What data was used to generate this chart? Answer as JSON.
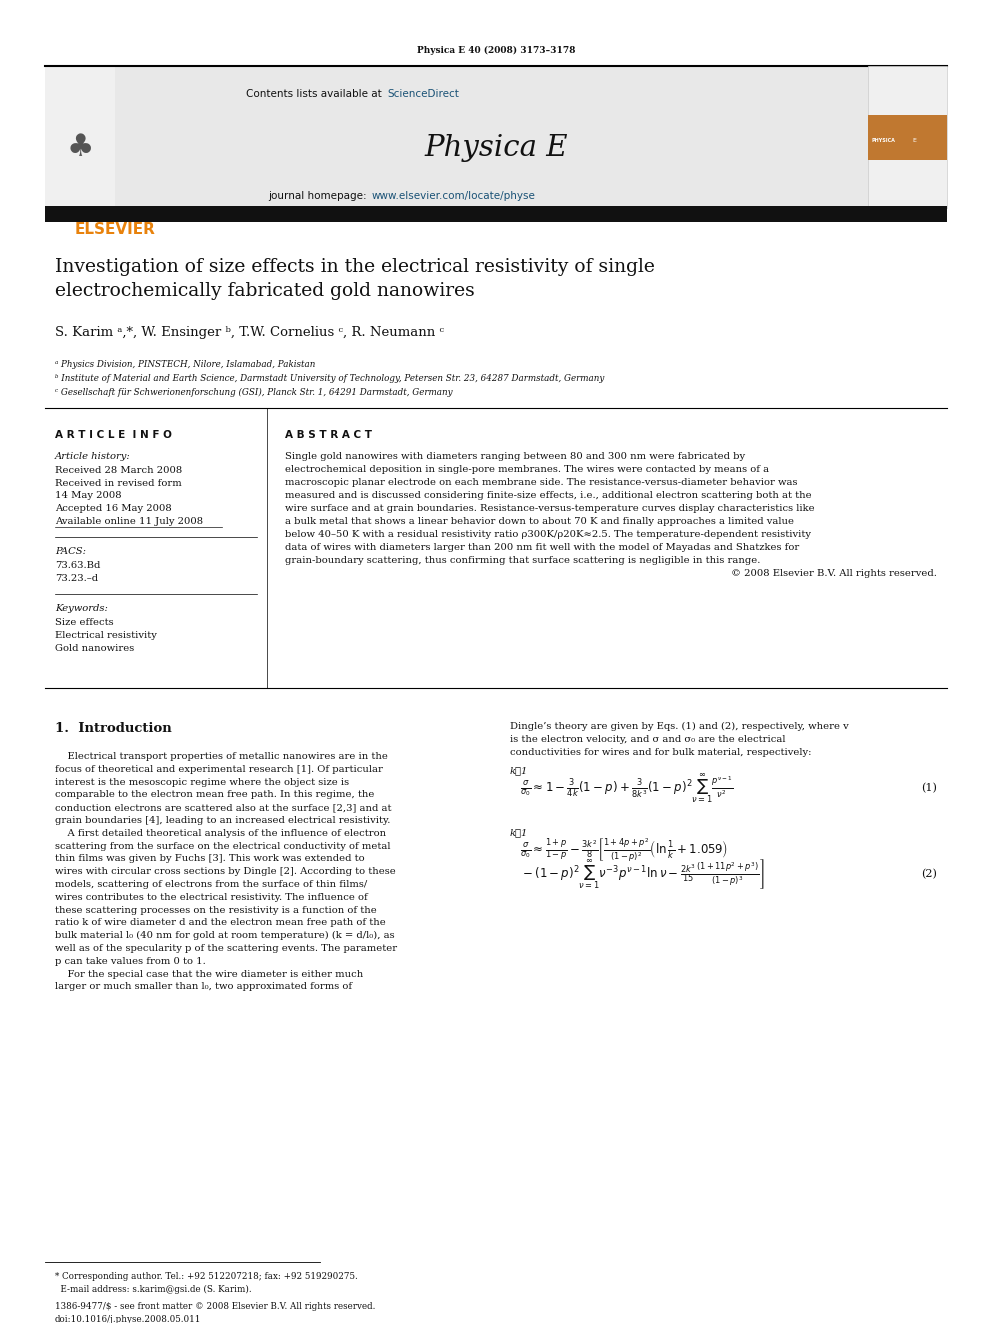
{
  "page_width": 9.92,
  "page_height": 13.23,
  "bg_color": "#ffffff",
  "journal_ref": "Physica E 40 (2008) 3173–3178",
  "header_bg": "#e8e8e8",
  "sciencedirect_color": "#1a5276",
  "journal_name": "Physica E",
  "journal_homepage_label": "journal homepage:",
  "journal_url": "www.elsevier.com/locate/physe",
  "elsevier_color": "#e8820c",
  "elsevier_text": "ELSEVIER",
  "dark_bar_color": "#111111",
  "title_line1": "Investigation of size effects in the electrical resistivity of single",
  "title_line2": "electrochemically fabricated gold nanowires",
  "authors_full": "S. Karim ᵃ,*, W. Ensinger ᵇ, T.W. Cornelius ᶜ, R. Neumann ᶜ",
  "affil_a": "ᵃ Physics Division, PINSTECH, Nilore, Islamabad, Pakistan",
  "affil_b": "ᵇ Institute of Material and Earth Science, Darmstadt University of Technology, Petersen Str. 23, 64287 Darmstadt, Germany",
  "affil_c": "ᶜ Gesellschaft für Schwerionenforschung (GSI), Planck Str. 1, 64291 Darmstadt, Germany",
  "article_info_header": "A R T I C L E  I N F O",
  "abstract_header": "A B S T R A C T",
  "article_history_label": "Article history:",
  "received": "Received 28 March 2008",
  "received_revised": "Received in revised form",
  "received_revised2": "14 May 2008",
  "accepted": "Accepted 16 May 2008",
  "available": "Available online 11 July 2008",
  "pacs_label": "PACS:",
  "pacs1": "73.63.Bd",
  "pacs2": "73.23.–d",
  "keywords_label": "Keywords:",
  "kw1": "Size effects",
  "kw2": "Electrical resistivity",
  "kw3": "Gold nanowires",
  "abstract_lines": [
    "Single gold nanowires with diameters ranging between 80 and 300 nm were fabricated by",
    "electrochemical deposition in single-pore membranes. The wires were contacted by means of a",
    "macroscopic planar electrode on each membrane side. The resistance-versus-diameter behavior was",
    "measured and is discussed considering finite-size effects, i.e., additional electron scattering both at the",
    "wire surface and at grain boundaries. Resistance-versus-temperature curves display characteristics like",
    "a bulk metal that shows a linear behavior down to about 70 K and finally approaches a limited value",
    "below 40–50 K with a residual resistivity ratio ρ300K/ρ20K≈2.5. The temperature-dependent resistivity",
    "data of wires with diameters larger than 200 nm fit well with the model of Mayadas and Shatzkes for",
    "grain-boundary scattering, thus confirming that surface scattering is negligible in this range."
  ],
  "abstract_copy": "© 2008 Elsevier B.V. All rights reserved.",
  "section1_title": "1.  Introduction",
  "intro_col1": [
    "    Electrical transport properties of metallic nanowires are in the",
    "focus of theoretical and experimental research [1]. Of particular",
    "interest is the mesoscopic regime where the object size is",
    "comparable to the electron mean free path. In this regime, the",
    "conduction electrons are scattered also at the surface [2,3] and at",
    "grain boundaries [4], leading to an increased electrical resistivity.",
    "    A first detailed theoretical analysis of the influence of electron",
    "scattering from the surface on the electrical conductivity of metal",
    "thin films was given by Fuchs [3]. This work was extended to",
    "wires with circular cross sections by Dingle [2]. According to these",
    "models, scattering of electrons from the surface of thin films/",
    "wires contributes to the electrical resistivity. The influence of",
    "these scattering processes on the resistivity is a function of the",
    "ratio k of wire diameter d and the electron mean free path of the",
    "bulk material l₀ (40 nm for gold at room temperature) (k = d/l₀), as",
    "well as of the specularity p of the scattering events. The parameter",
    "p can take values from 0 to 1.",
    "    For the special case that the wire diameter is either much",
    "larger or much smaller than l₀, two approximated forms of"
  ],
  "intro_col2": [
    "Dingle’s theory are given by Eqs. (1) and (2), respectively, where v",
    "is the electron velocity, and σ and σ₀ are the electrical",
    "conductivities for wires and for bulk material, respectively:"
  ],
  "eq1_label": "k≫1",
  "eq2_label": "k≪1",
  "footnote1": "* Corresponding author. Tel.: +92 512207218; fax: +92 519290275.",
  "footnote2": "  E-mail address: s.karim@gsi.de (S. Karim).",
  "issn_line": "1386-9477/$ - see front matter © 2008 Elsevier B.V. All rights reserved.",
  "doi_line": "doi:10.1016/j.physe.2008.05.011",
  "contents_text": "Contents lists available at ",
  "sciencedirect_text": "ScienceDirect"
}
